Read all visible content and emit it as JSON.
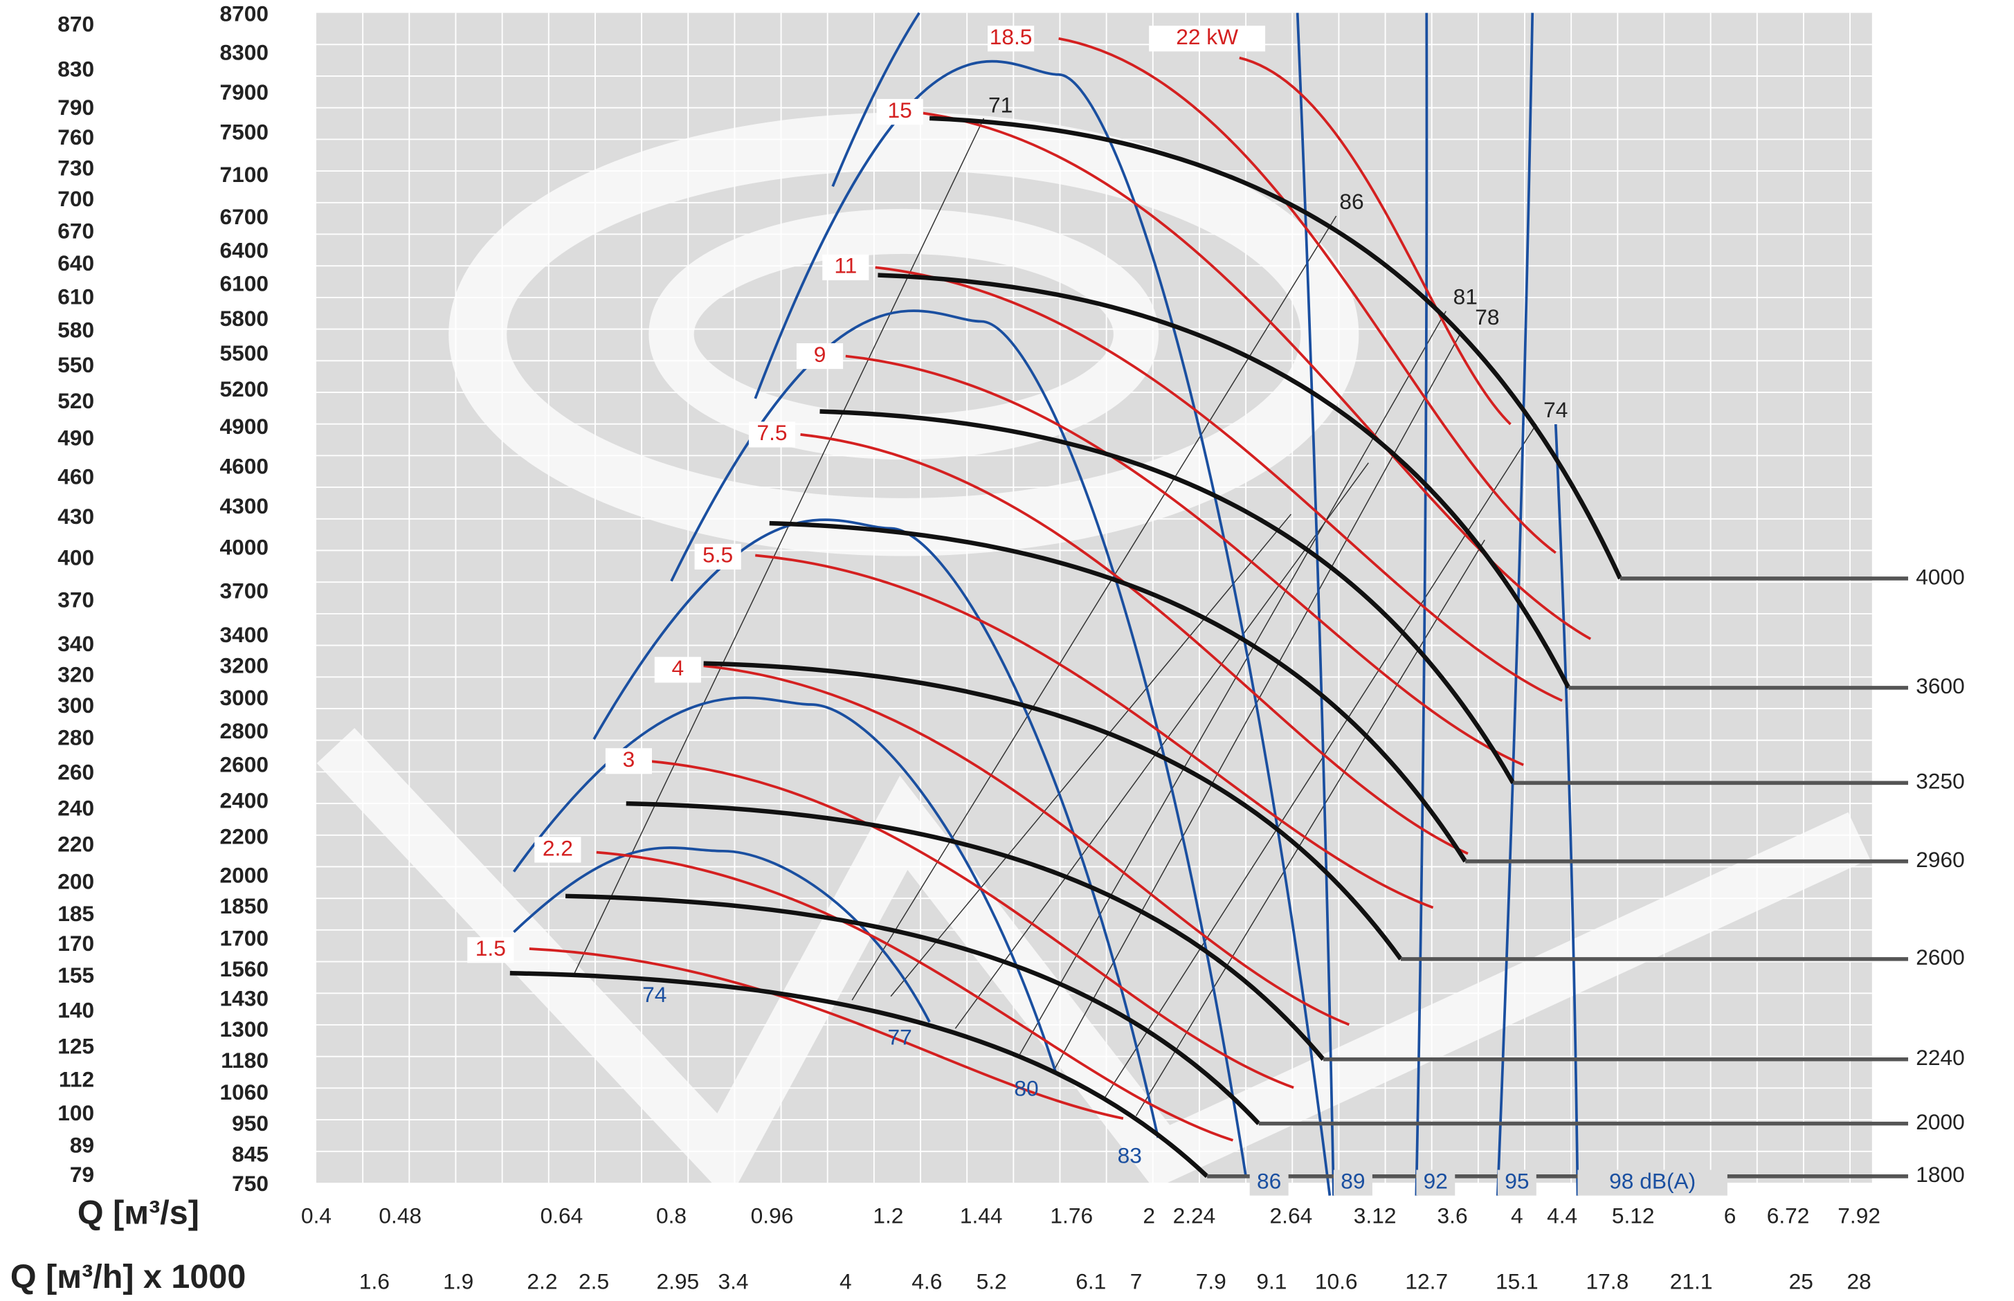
{
  "axes": {
    "x_title": "Q [м³/s]",
    "x2_title": "Q [м³/h] x 1000",
    "x_labels": [
      0.4,
      0.48,
      0.64,
      0.8,
      0.96,
      1.2,
      1.44,
      1.76,
      2,
      2.24,
      2.64,
      3.12,
      3.6,
      4,
      4.4,
      5.12,
      6,
      6.72,
      7.92
    ],
    "x2_labels": [
      1.6,
      1.9,
      2.2,
      2.5,
      2.95,
      3.4,
      4,
      4.6,
      5.2,
      6.1,
      7,
      7.9,
      9.1,
      10.6,
      12.7,
      15.1,
      17.8,
      21.1,
      25,
      28
    ],
    "y_labels": [
      870,
      830,
      790,
      760,
      730,
      700,
      670,
      640,
      610,
      580,
      550,
      520,
      490,
      460,
      430,
      400,
      370,
      340,
      320,
      300,
      280,
      260,
      240,
      220,
      200,
      185,
      170,
      155,
      140,
      125,
      112,
      100,
      89,
      79
    ],
    "y2_labels": [
      8700,
      8300,
      7900,
      7500,
      7100,
      6700,
      6400,
      6100,
      5800,
      5500,
      5200,
      4900,
      4600,
      4300,
      4000,
      3700,
      3400,
      3200,
      3000,
      2800,
      2600,
      2400,
      2200,
      2000,
      1850,
      1700,
      1560,
      1430,
      1300,
      1180,
      1060,
      950,
      845,
      750
    ]
  },
  "speed_labels": [
    4000,
    3600,
    3250,
    2960,
    2600,
    2240,
    2000,
    1800
  ],
  "power_labels": [
    1.5,
    2.2,
    3,
    4,
    5.5,
    7.5,
    9,
    11,
    15,
    18.5,
    "22 kW"
  ],
  "noise_labels": [
    74,
    77,
    80,
    83,
    86,
    89,
    92,
    95,
    "98 dB(A)"
  ],
  "efficiency_labels": [
    71,
    86,
    81,
    78,
    74
  ]
}
